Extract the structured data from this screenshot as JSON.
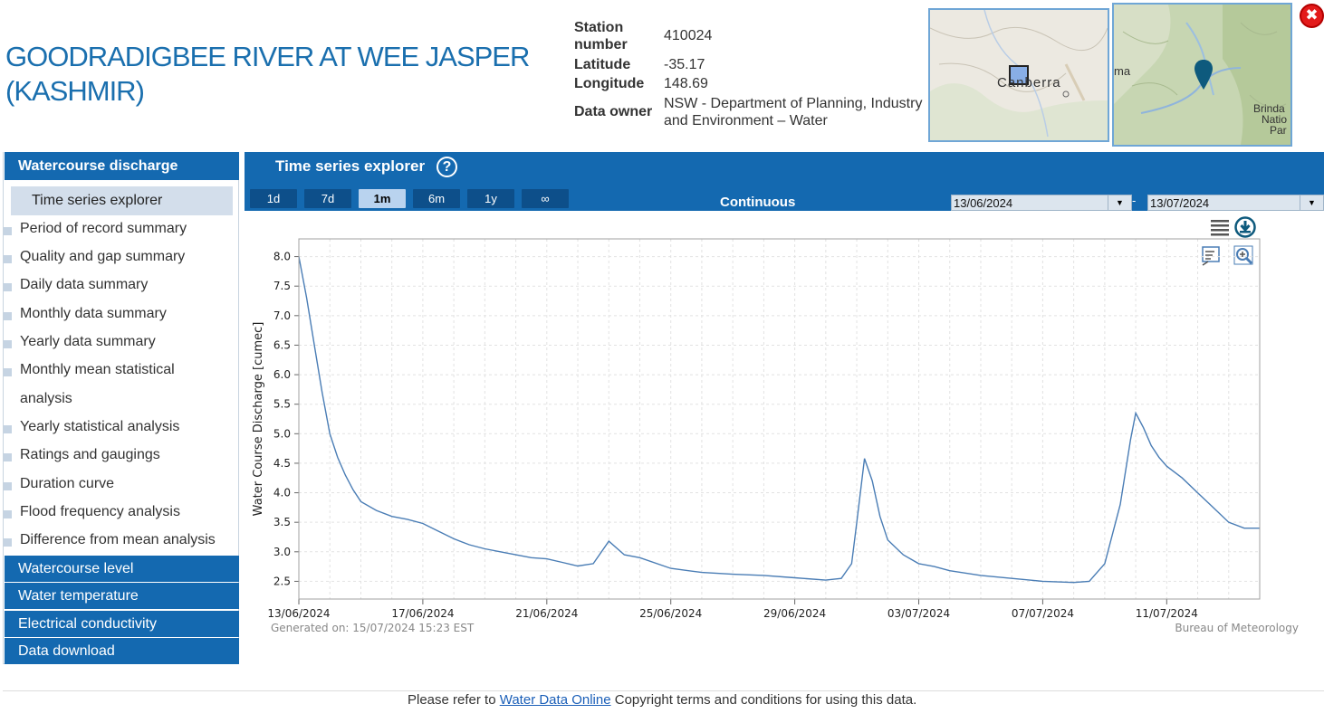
{
  "station": {
    "title": "GOODRADIGBEE RIVER AT WEE JASPER (KASHMIR)",
    "number_label_1": "Station",
    "number_label_2": "number",
    "number_value": "410024",
    "latitude_label": "Latitude",
    "latitude_value": "-35.17",
    "longitude_label": "Longitude",
    "longitude_value": "148.69",
    "owner_label": "Data owner",
    "owner_value_1": "NSW - Department of Planning, Industry",
    "owner_value_2": "and Environment – Water"
  },
  "maps": {
    "overview_label": "Canberra",
    "detail_label_left": "ma",
    "detail_label_right_1": "Brinda",
    "detail_label_right_2": "Natio",
    "detail_label_right_3": "Par",
    "close_glyph": "✖"
  },
  "sidebar": {
    "sections": [
      {
        "label": "Watercourse discharge"
      },
      {
        "label": "Watercourse level"
      },
      {
        "label": "Water temperature"
      },
      {
        "label": "Electrical conductivity"
      },
      {
        "label": "Data download"
      }
    ],
    "active_item": "Time series explorer",
    "items": [
      {
        "label": "Period of record summary"
      },
      {
        "label": "Quality and gap summary"
      },
      {
        "label": "Daily data summary"
      },
      {
        "label": "Monthly data summary"
      },
      {
        "label": "Yearly data summary"
      },
      {
        "label": "Monthly mean statistical"
      },
      {
        "label": "analysis"
      },
      {
        "label": "Yearly statistical analysis"
      },
      {
        "label": "Ratings and gaugings"
      },
      {
        "label": "Duration curve"
      },
      {
        "label": "Flood frequency analysis"
      },
      {
        "label": "Difference from mean analysis"
      }
    ]
  },
  "explorer": {
    "title": "Time series explorer",
    "help_glyph": "?",
    "ranges": [
      "1d",
      "7d",
      "1m",
      "6m",
      "1y",
      "∞"
    ],
    "active_range": "1m",
    "mode": "Continuous",
    "date_from": "13/06/2024",
    "date_to": "13/07/2024",
    "date_sep": "-",
    "dropdown_glyph": "▼"
  },
  "chart_data": {
    "type": "line",
    "title": "",
    "xlabel": "",
    "ylabel": "Water Course Discharge [cumec]",
    "ylim": [
      2.2,
      8.3
    ],
    "yticks": [
      "8.0",
      "7.5",
      "7.0",
      "6.5",
      "6.0",
      "5.5",
      "5.0",
      "4.5",
      "4.0",
      "3.5",
      "3.0",
      "2.5"
    ],
    "xticks": [
      "13/06/2024",
      "17/06/2024",
      "21/06/2024",
      "25/06/2024",
      "29/06/2024",
      "03/07/2024",
      "07/07/2024",
      "11/07/2024"
    ],
    "series_color": "#4a7db5",
    "series": [
      {
        "x": [
          "13/06/2024 00:00",
          "13/06/2024 06:00",
          "13/06/2024 12:00",
          "13/06/2024 18:00",
          "14/06/2024 00:00",
          "14/06/2024 06:00",
          "14/06/2024 12:00",
          "14/06/2024 18:00",
          "15/06/2024 00:00",
          "15/06/2024 12:00",
          "16/06/2024 00:00",
          "16/06/2024 12:00",
          "17/06/2024 00:00",
          "17/06/2024 12:00",
          "18/06/2024 00:00",
          "18/06/2024 12:00",
          "19/06/2024 00:00",
          "19/06/2024 12:00",
          "20/06/2024 00:00",
          "20/06/2024 12:00",
          "21/06/2024 00:00",
          "21/06/2024 12:00",
          "21/06/2024 20:00",
          "22/06/2024 00:00",
          "22/06/2024 12:00",
          "23/06/2024 00:00",
          "23/06/2024 12:00",
          "24/06/2024 00:00",
          "25/06/2024 00:00",
          "26/06/2024 00:00",
          "27/06/2024 00:00",
          "28/06/2024 00:00",
          "29/06/2024 00:00",
          "30/06/2024 00:00",
          "30/06/2024 12:00",
          "30/06/2024 20:00",
          "01/07/2024 00:00",
          "01/07/2024 06:00",
          "01/07/2024 12:00",
          "01/07/2024 18:00",
          "02/07/2024 00:00",
          "02/07/2024 12:00",
          "03/07/2024 00:00",
          "03/07/2024 12:00",
          "04/07/2024 00:00",
          "05/07/2024 00:00",
          "06/07/2024 00:00",
          "07/07/2024 00:00",
          "08/07/2024 00:00",
          "08/07/2024 12:00",
          "09/07/2024 00:00",
          "09/07/2024 12:00",
          "09/07/2024 20:00",
          "10/07/2024 00:00",
          "10/07/2024 06:00",
          "10/07/2024 12:00",
          "10/07/2024 18:00",
          "11/07/2024 00:00",
          "11/07/2024 12:00",
          "12/07/2024 00:00",
          "12/07/2024 12:00",
          "13/07/2024 00:00",
          "13/07/2024 12:00",
          "14/07/2024 00:00"
        ],
        "values": [
          8.0,
          7.3,
          6.5,
          5.7,
          5.0,
          4.6,
          4.3,
          4.05,
          3.85,
          3.7,
          3.6,
          3.55,
          3.48,
          3.35,
          3.22,
          3.12,
          3.05,
          3.0,
          2.95,
          2.9,
          2.88,
          2.82,
          2.78,
          2.76,
          2.8,
          3.18,
          2.95,
          2.9,
          2.72,
          2.65,
          2.62,
          2.6,
          2.56,
          2.52,
          2.55,
          2.8,
          3.5,
          4.58,
          4.2,
          3.6,
          3.2,
          2.95,
          2.8,
          2.75,
          2.68,
          2.6,
          2.55,
          2.5,
          2.48,
          2.5,
          2.8,
          3.8,
          4.9,
          5.35,
          5.1,
          4.8,
          4.6,
          4.45,
          4.25,
          4.0,
          3.75,
          3.5,
          3.4,
          3.4
        ]
      }
    ],
    "generated_text": "Generated on: 15/07/2024 15:23 EST",
    "credit_text": "Bureau of Meteorology"
  },
  "footer": {
    "prefix": "Please refer to",
    "link_text": "Water Data Online",
    "suffix": "Copyright terms and conditions for using this data."
  }
}
